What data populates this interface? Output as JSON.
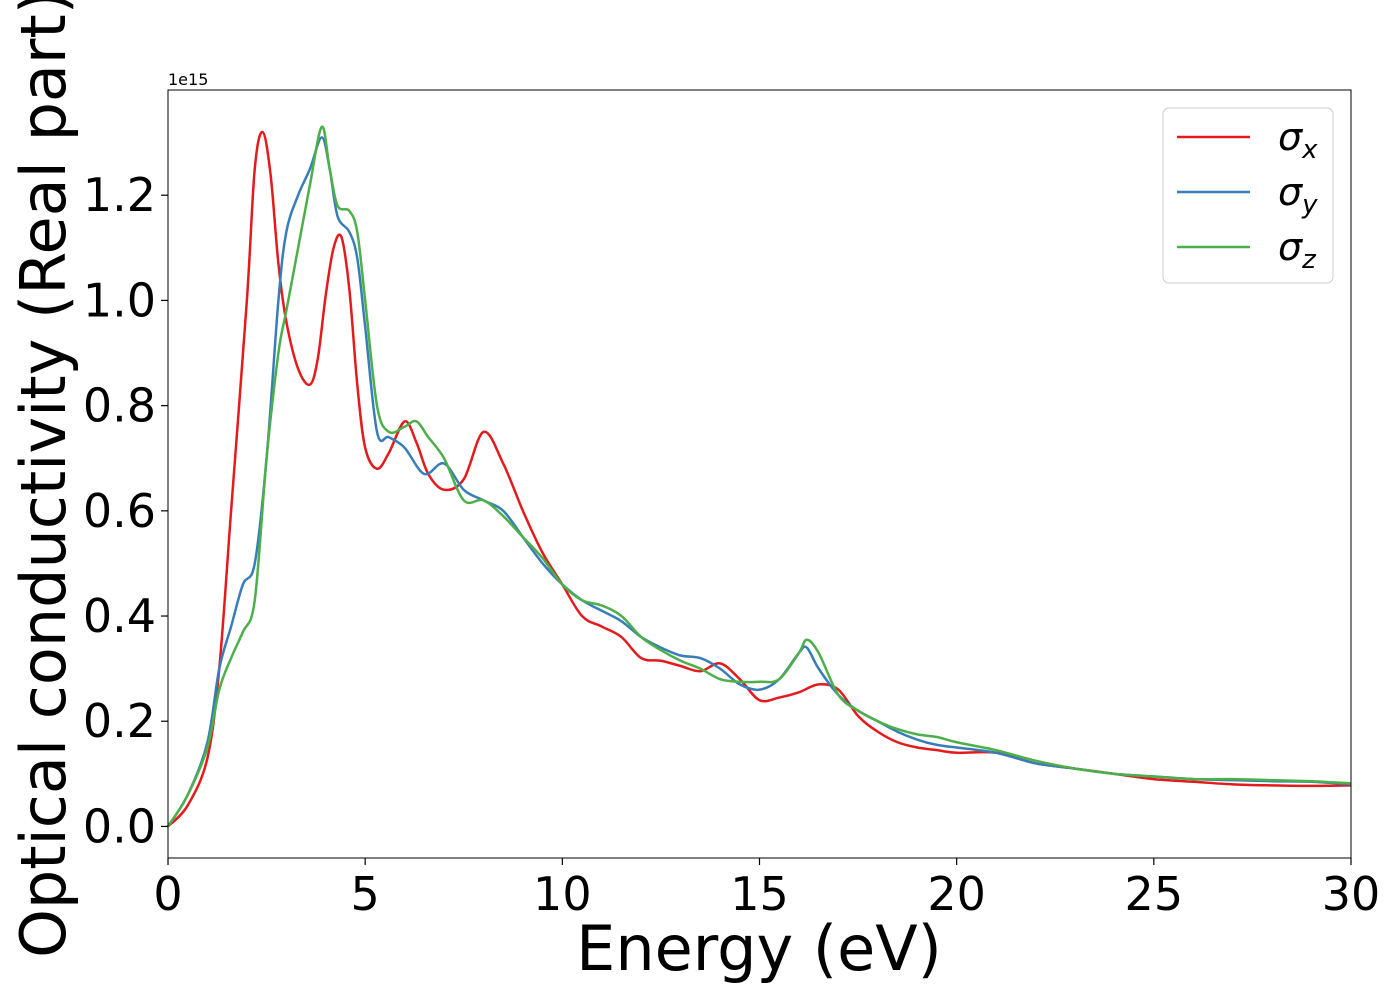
{
  "chart_data": {
    "type": "line",
    "xlabel": "Energy (eV)",
    "ylabel": "Optical conductivity (Real part)",
    "y_offset_text": "1e15",
    "y_scale": 1000000000000000.0,
    "xlim": [
      0,
      30
    ],
    "ylim": [
      -0.06,
      1.4
    ],
    "xticks": [
      0,
      5,
      10,
      15,
      20,
      25,
      30
    ],
    "yticks": [
      0.0,
      0.2,
      0.4,
      0.6,
      0.8,
      1.0,
      1.2
    ],
    "ytick_labels": [
      "0.0",
      "0.2",
      "0.4",
      "0.6",
      "0.8",
      "1.0",
      "1.2"
    ],
    "grid": false,
    "legend_position": "top-right",
    "series": [
      {
        "name": "σx",
        "name_symbol": "σ",
        "name_sub": "x",
        "color": "#e41a1c",
        "x": [
          0,
          0.5,
          1,
          1.3,
          1.6,
          2,
          2.2,
          2.4,
          2.6,
          2.8,
          3,
          3.3,
          3.6,
          3.8,
          4,
          4.2,
          4.4,
          4.6,
          4.8,
          5,
          5.3,
          5.6,
          6,
          6.3,
          6.6,
          7,
          7.5,
          8,
          8.5,
          9,
          9.5,
          10,
          10.5,
          11,
          11.5,
          12,
          12.5,
          13,
          13.5,
          14,
          14.5,
          15,
          15.5,
          16,
          16.5,
          17,
          17.5,
          18,
          18.5,
          19,
          19.5,
          20,
          21,
          22,
          23,
          24,
          25,
          26,
          27,
          28,
          29,
          30
        ],
        "y": [
          0,
          0.04,
          0.13,
          0.3,
          0.6,
          1.0,
          1.25,
          1.32,
          1.24,
          1.07,
          0.96,
          0.87,
          0.84,
          0.89,
          1.01,
          1.1,
          1.12,
          1.02,
          0.84,
          0.72,
          0.68,
          0.71,
          0.77,
          0.73,
          0.67,
          0.64,
          0.66,
          0.75,
          0.69,
          0.6,
          0.52,
          0.46,
          0.4,
          0.38,
          0.36,
          0.32,
          0.315,
          0.305,
          0.295,
          0.31,
          0.28,
          0.24,
          0.245,
          0.255,
          0.27,
          0.26,
          0.21,
          0.18,
          0.16,
          0.15,
          0.145,
          0.14,
          0.14,
          0.12,
          0.11,
          0.1,
          0.09,
          0.085,
          0.08,
          0.078,
          0.077,
          0.078
        ]
      },
      {
        "name": "σy",
        "name_symbol": "σ",
        "name_sub": "y",
        "color": "#377eb8",
        "x": [
          0,
          0.5,
          1,
          1.3,
          1.6,
          1.9,
          2.2,
          2.5,
          2.8,
          3,
          3.3,
          3.6,
          3.9,
          4.1,
          4.3,
          4.6,
          4.8,
          5,
          5.3,
          5.6,
          6,
          6.5,
          7,
          7.5,
          8,
          8.5,
          9,
          9.5,
          10,
          10.5,
          11,
          11.5,
          12,
          12.5,
          13,
          13.5,
          14,
          14.5,
          15,
          15.5,
          16,
          16.2,
          16.5,
          17,
          17.5,
          18,
          18.5,
          19,
          19.5,
          20,
          21,
          22,
          23,
          24,
          25,
          26,
          27,
          28,
          29,
          30
        ],
        "y": [
          0,
          0.06,
          0.16,
          0.3,
          0.38,
          0.46,
          0.5,
          0.7,
          1.0,
          1.13,
          1.2,
          1.25,
          1.31,
          1.25,
          1.16,
          1.13,
          1.08,
          0.95,
          0.75,
          0.74,
          0.72,
          0.67,
          0.69,
          0.64,
          0.62,
          0.6,
          0.55,
          0.5,
          0.46,
          0.43,
          0.41,
          0.39,
          0.36,
          0.34,
          0.325,
          0.32,
          0.3,
          0.27,
          0.26,
          0.28,
          0.33,
          0.34,
          0.3,
          0.25,
          0.22,
          0.2,
          0.18,
          0.165,
          0.155,
          0.15,
          0.14,
          0.12,
          0.11,
          0.1,
          0.095,
          0.09,
          0.088,
          0.086,
          0.085,
          0.08
        ]
      },
      {
        "name": "σz",
        "name_symbol": "σ",
        "name_sub": "z",
        "color": "#4daf4a",
        "x": [
          0,
          0.5,
          1,
          1.3,
          1.6,
          1.9,
          2.2,
          2.5,
          2.8,
          3,
          3.3,
          3.6,
          3.9,
          4.1,
          4.3,
          4.6,
          4.8,
          5,
          5.3,
          5.6,
          6,
          6.3,
          6.6,
          7,
          7.5,
          8,
          8.5,
          9,
          9.5,
          10,
          10.5,
          11,
          11.5,
          12,
          12.5,
          13,
          13.5,
          14,
          14.5,
          15,
          15.5,
          16,
          16.2,
          16.5,
          17,
          17.5,
          18,
          18.5,
          19,
          19.5,
          20,
          21,
          22,
          23,
          24,
          25,
          26,
          27,
          28,
          29,
          30
        ],
        "y": [
          0,
          0.06,
          0.15,
          0.26,
          0.32,
          0.37,
          0.43,
          0.7,
          0.9,
          0.98,
          1.1,
          1.22,
          1.33,
          1.25,
          1.18,
          1.17,
          1.13,
          1.0,
          0.8,
          0.75,
          0.76,
          0.77,
          0.74,
          0.7,
          0.62,
          0.62,
          0.59,
          0.55,
          0.51,
          0.46,
          0.43,
          0.42,
          0.4,
          0.36,
          0.335,
          0.315,
          0.3,
          0.28,
          0.275,
          0.275,
          0.28,
          0.33,
          0.355,
          0.33,
          0.25,
          0.22,
          0.2,
          0.185,
          0.175,
          0.17,
          0.16,
          0.145,
          0.125,
          0.11,
          0.1,
          0.095,
          0.09,
          0.09,
          0.088,
          0.086,
          0.082
        ]
      }
    ]
  }
}
